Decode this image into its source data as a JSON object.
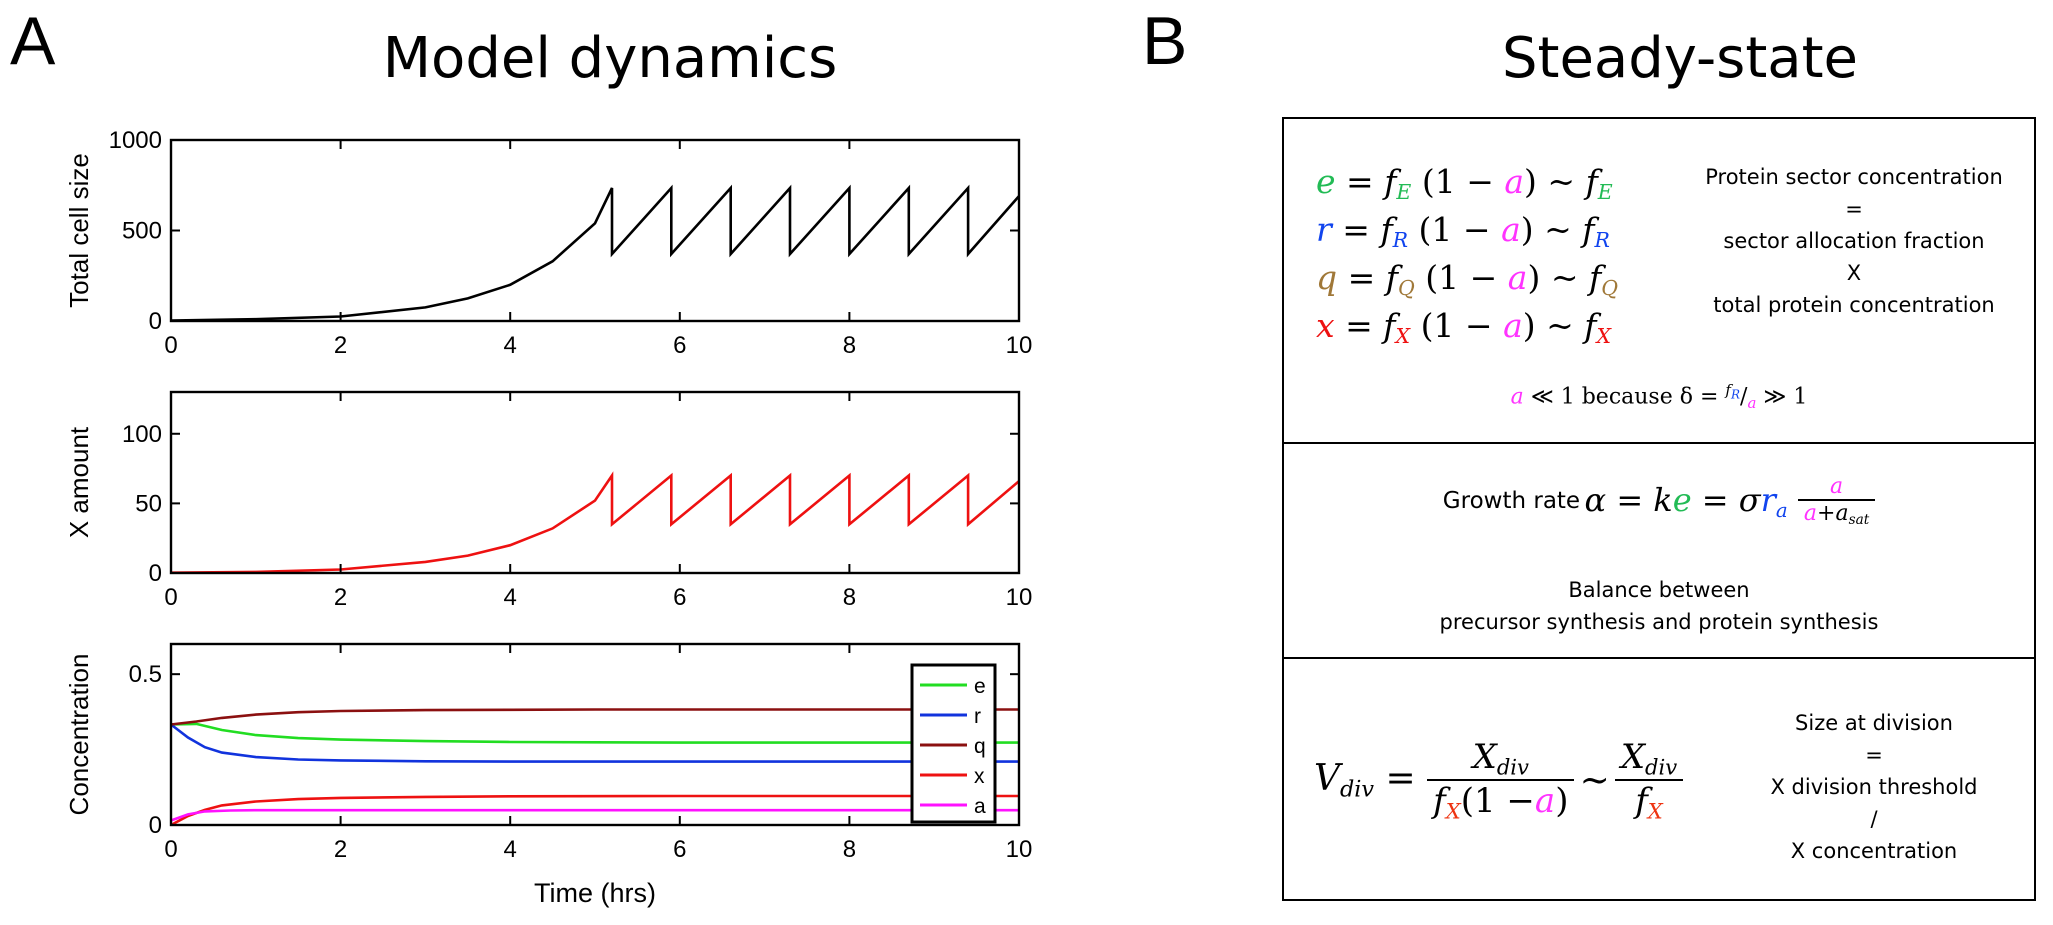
{
  "panel_a": {
    "letter": "A",
    "title": "Model dynamics"
  },
  "panel_b": {
    "letter": "B",
    "title": "Steady-state"
  },
  "colors": {
    "e": "#22bb55",
    "r": "#1144ee",
    "q": "#a07838",
    "x": "#ee1111",
    "a": "#ff33ff",
    "black": "#000000"
  },
  "chart_data": [
    {
      "type": "line",
      "ylabel": "Total cell size",
      "xlim": [
        0,
        10
      ],
      "ylim": [
        0,
        1000
      ],
      "xticks": [
        "0",
        "2",
        "4",
        "6",
        "8",
        "10"
      ],
      "yticks": [
        "0",
        "500",
        "1000"
      ],
      "series": [
        {
          "color": "#000000",
          "x": [
            0,
            1,
            2,
            3,
            3.5,
            4,
            4.5,
            5,
            5.2,
            5.2,
            5.9,
            5.9,
            6.6,
            6.6,
            7.3,
            7.3,
            8.0,
            8.0,
            8.7,
            8.7,
            9.4,
            9.4,
            10
          ],
          "y": [
            3,
            10,
            25,
            75,
            125,
            200,
            330,
            540,
            735,
            370,
            735,
            370,
            735,
            370,
            735,
            370,
            735,
            370,
            735,
            370,
            735,
            370,
            690
          ]
        }
      ]
    },
    {
      "type": "line",
      "ylabel": "X amount",
      "xlim": [
        0,
        10
      ],
      "ylim": [
        0,
        130
      ],
      "xticks": [
        "0",
        "2",
        "4",
        "6",
        "8",
        "10"
      ],
      "yticks": [
        "0",
        "50",
        "100"
      ],
      "series": [
        {
          "color": "#ee1111",
          "x": [
            0,
            1,
            2,
            3,
            3.5,
            4,
            4.5,
            5,
            5.2,
            5.2,
            5.9,
            5.9,
            6.6,
            6.6,
            7.3,
            7.3,
            8.0,
            8.0,
            8.7,
            8.7,
            9.4,
            9.4,
            10
          ],
          "y": [
            0.2,
            0.8,
            2.5,
            8,
            12.5,
            20,
            32,
            52,
            70,
            35,
            70,
            35,
            70,
            35,
            70,
            35,
            70,
            35,
            70,
            35,
            70,
            35,
            66
          ]
        }
      ]
    },
    {
      "type": "line",
      "xlabel": "Time (hrs)",
      "ylabel": "Concentration",
      "xlim": [
        0,
        10
      ],
      "ylim": [
        0,
        0.6
      ],
      "xticks": [
        "0",
        "2",
        "4",
        "6",
        "8",
        "10"
      ],
      "yticks": [
        "0",
        "0.5"
      ],
      "legend_position": "right",
      "series": [
        {
          "name": "e",
          "color": "#22dd22",
          "x": [
            0,
            0.3,
            0.6,
            1,
            1.5,
            2,
            3,
            4,
            5,
            6,
            8,
            10
          ],
          "y": [
            0.333,
            0.335,
            0.315,
            0.298,
            0.288,
            0.283,
            0.278,
            0.275,
            0.274,
            0.273,
            0.273,
            0.273
          ]
        },
        {
          "name": "r",
          "color": "#1133dd",
          "x": [
            0,
            0.2,
            0.4,
            0.6,
            1,
            1.5,
            2,
            3,
            4,
            6,
            8,
            10
          ],
          "y": [
            0.333,
            0.29,
            0.258,
            0.24,
            0.225,
            0.217,
            0.214,
            0.211,
            0.21,
            0.21,
            0.21,
            0.21
          ]
        },
        {
          "name": "q",
          "color": "#8b1010",
          "x": [
            0,
            0.3,
            0.6,
            1,
            1.5,
            2,
            3,
            4,
            5,
            6,
            8,
            10
          ],
          "y": [
            0.333,
            0.343,
            0.355,
            0.366,
            0.374,
            0.378,
            0.381,
            0.382,
            0.383,
            0.383,
            0.383,
            0.383
          ]
        },
        {
          "name": "x",
          "color": "#ee1111",
          "x": [
            0,
            0.2,
            0.4,
            0.6,
            1,
            1.5,
            2,
            3,
            4,
            6,
            8,
            10
          ],
          "y": [
            0.0,
            0.03,
            0.05,
            0.065,
            0.078,
            0.086,
            0.09,
            0.093,
            0.095,
            0.096,
            0.096,
            0.096
          ]
        },
        {
          "name": "a",
          "color": "#ff11ff",
          "x": [
            0,
            0.2,
            0.4,
            0.7,
            1,
            2,
            4,
            6,
            8,
            10
          ],
          "y": [
            0.015,
            0.035,
            0.045,
            0.048,
            0.049,
            0.049,
            0.049,
            0.049,
            0.049,
            0.049
          ]
        }
      ]
    }
  ],
  "box1": {
    "rows": [
      {
        "var": "e",
        "sub": "E"
      },
      {
        "var": "r",
        "sub": "R"
      },
      {
        "var": "q",
        "sub": "Q"
      },
      {
        "var": "x",
        "sub": "X"
      }
    ],
    "eq": "=",
    "f": "f",
    "open": "(1 −",
    "a": "a",
    "close": ")",
    "tilde": "~",
    "desc_lines": [
      "Protein sector concentration",
      "=",
      "sector allocation fraction",
      "X",
      "total protein concentration"
    ],
    "note_a": "a",
    "note_mid": "≪ 1 because δ =",
    "note_f": "f",
    "note_fsub": "R",
    "note_slash": "/",
    "note_a2": "a",
    "note_end": "≫ 1"
  },
  "box2": {
    "prefix": "Growth rate",
    "alpha": "α",
    "eq1": "=",
    "k": "k",
    "e": "e",
    "eq2": "=",
    "sigma": "σ",
    "r": "r",
    "rsub": "a",
    "num": "a",
    "den_a": "a",
    "den_plus": "+",
    "den_asat": "a",
    "den_asat_sub": "sat",
    "balance_1": "Balance between",
    "balance_2": "precursor synthesis and protein synthesis"
  },
  "box3": {
    "V": "V",
    "Vsub": "div",
    "eq": "=",
    "Xnum": "X",
    "Xnum_sub": "div",
    "den_f": "f",
    "den_fsub": "X",
    "den_open": "(1 −",
    "den_a": "a",
    "den_close": ")",
    "tilde": "~",
    "X2": "X",
    "X2_sub": "div",
    "f2": "f",
    "f2_sub": "X",
    "desc_lines": [
      "Size at division",
      "=",
      "X division threshold",
      "/",
      "X concentration"
    ]
  }
}
